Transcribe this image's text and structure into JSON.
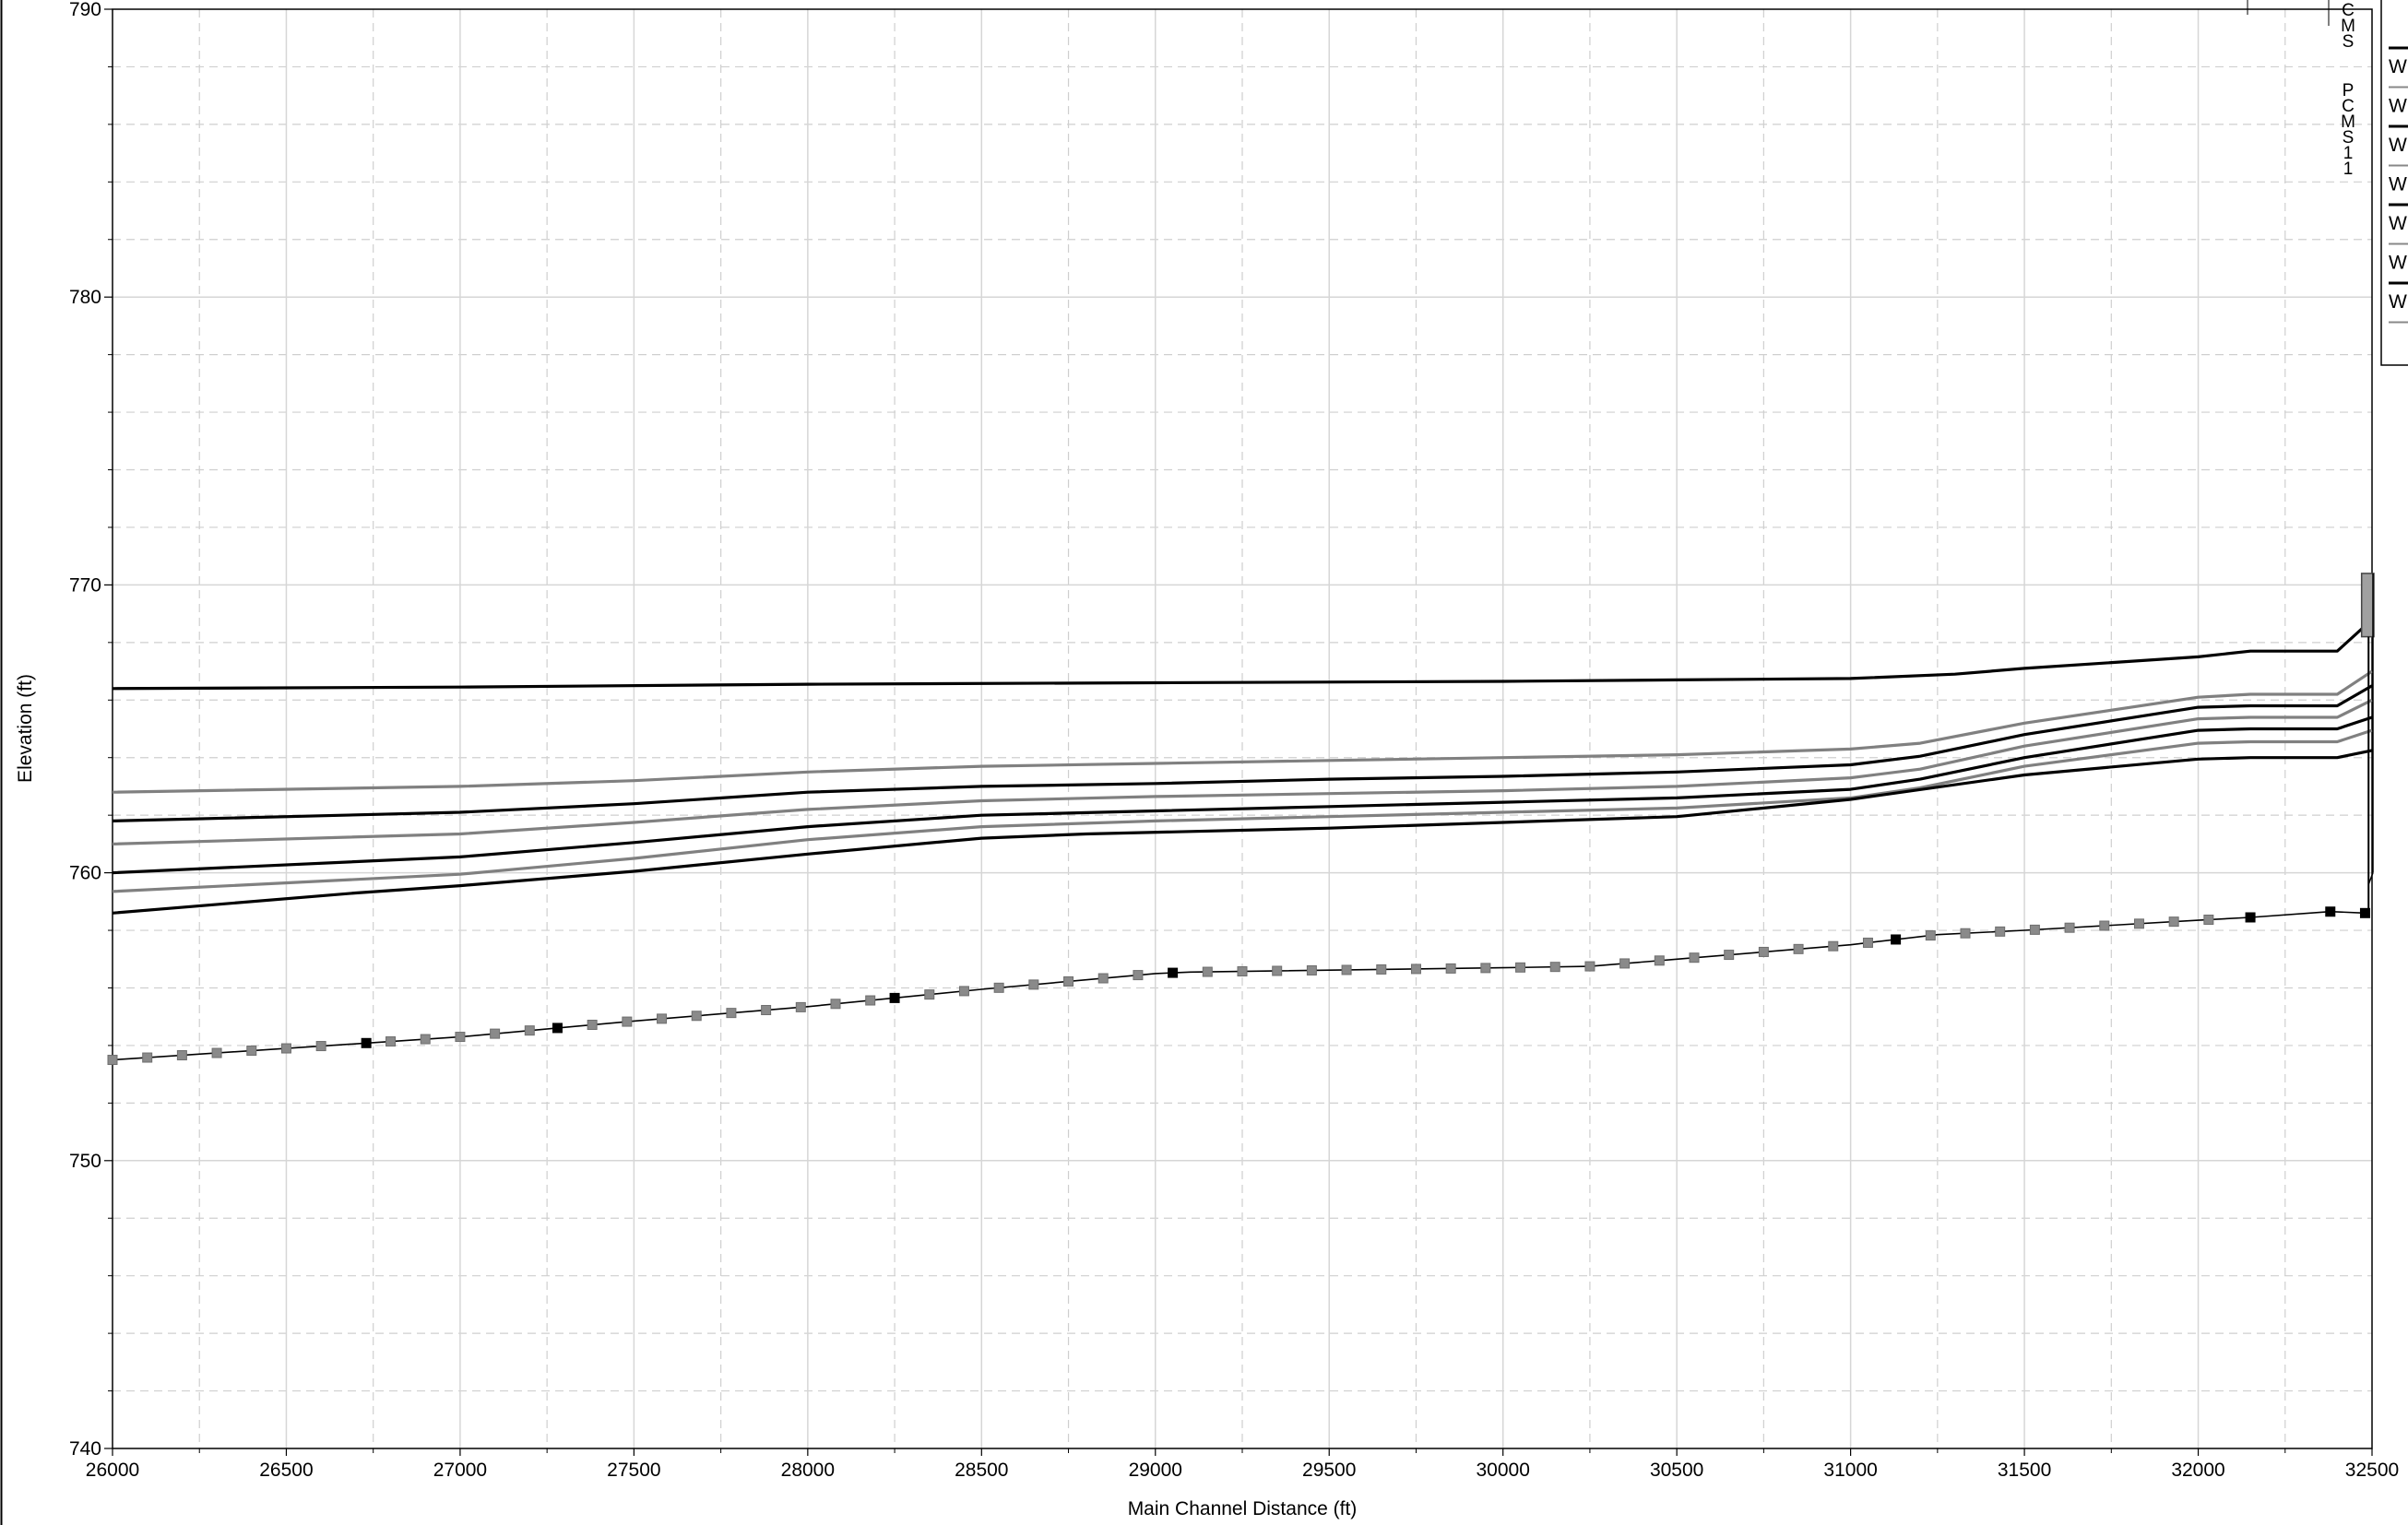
{
  "chart_data": {
    "type": "line",
    "xlabel": "Main Channel Distance (ft)",
    "ylabel": "Elevation (ft)",
    "xlim": [
      26000,
      32500
    ],
    "ylim": [
      740,
      790
    ],
    "x_ticks": [
      26000,
      26500,
      27000,
      27500,
      28000,
      28500,
      29000,
      29500,
      30000,
      30500,
      31000,
      31500,
      32000,
      32500
    ],
    "y_ticks": [
      740,
      750,
      760,
      770,
      780,
      790
    ],
    "grid": true,
    "legend_placement": "top-right",
    "legend_entries": [
      "W",
      "W",
      "W",
      "W",
      "W",
      "W",
      "W",
      ""
    ],
    "structure_labels": [
      [
        "C",
        "M",
        "S"
      ],
      [
        "P",
        "C",
        "M",
        "S",
        "1",
        "1"
      ]
    ],
    "series": [
      {
        "color": "#000000",
        "x": [
          26000,
          27000,
          28000,
          29000,
          30000,
          30500,
          31000,
          31300,
          31500,
          32000,
          32150,
          32400,
          32500
        ],
        "y": [
          766.4,
          766.45,
          766.55,
          766.6,
          766.65,
          766.7,
          766.75,
          766.9,
          767.1,
          767.5,
          767.7,
          767.7,
          768.8
        ]
      },
      {
        "color": "#808080",
        "x": [
          26000,
          27000,
          27500,
          28000,
          28500,
          29000,
          29500,
          30000,
          30500,
          31000,
          31200,
          31500,
          32000,
          32150,
          32400,
          32500
        ],
        "y": [
          762.8,
          763.0,
          763.2,
          763.5,
          763.7,
          763.8,
          763.9,
          764.0,
          764.1,
          764.3,
          764.5,
          765.2,
          766.1,
          766.2,
          766.2,
          767.0
        ]
      },
      {
        "color": "#000000",
        "x": [
          26000,
          27000,
          27500,
          28000,
          28500,
          29000,
          29500,
          30000,
          30500,
          31000,
          31200,
          31500,
          32000,
          32150,
          32400,
          32500
        ],
        "y": [
          761.8,
          762.1,
          762.4,
          762.8,
          763.0,
          763.1,
          763.25,
          763.35,
          763.5,
          763.75,
          764.05,
          764.8,
          765.75,
          765.8,
          765.8,
          766.5
        ]
      },
      {
        "color": "#808080",
        "x": [
          26000,
          27000,
          27500,
          28000,
          28500,
          29000,
          29500,
          30000,
          30500,
          31000,
          31200,
          31500,
          32000,
          32150,
          32400,
          32500
        ],
        "y": [
          761.0,
          761.35,
          761.75,
          762.2,
          762.5,
          762.65,
          762.75,
          762.85,
          763.0,
          763.3,
          763.6,
          764.4,
          765.35,
          765.4,
          765.4,
          766.0
        ]
      },
      {
        "color": "#000000",
        "x": [
          26000,
          27000,
          27500,
          28000,
          28500,
          29000,
          29500,
          30000,
          30500,
          31000,
          31200,
          31500,
          32000,
          32150,
          32400,
          32500
        ],
        "y": [
          760.0,
          760.55,
          761.05,
          761.6,
          762.0,
          762.15,
          762.3,
          762.45,
          762.6,
          762.9,
          763.25,
          764.0,
          764.95,
          765.0,
          765.0,
          765.4
        ]
      },
      {
        "color": "#808080",
        "x": [
          26000,
          27000,
          27500,
          28000,
          28500,
          29000,
          29500,
          30000,
          30500,
          31000,
          31200,
          31500,
          32000,
          32150,
          32400,
          32500
        ],
        "y": [
          759.35,
          759.95,
          760.5,
          761.15,
          761.6,
          761.8,
          761.95,
          762.1,
          762.25,
          762.6,
          762.95,
          763.7,
          764.5,
          764.55,
          764.55,
          764.95
        ]
      },
      {
        "color": "#000000",
        "x": [
          26000,
          26700,
          27000,
          27500,
          28000,
          28500,
          28800,
          29500,
          30000,
          30500,
          31000,
          31500,
          32000,
          32150,
          32400,
          32500
        ],
        "y": [
          758.6,
          759.3,
          759.55,
          760.05,
          760.65,
          761.2,
          761.35,
          761.55,
          761.75,
          761.95,
          762.55,
          763.4,
          763.95,
          764.0,
          764.0,
          764.25
        ]
      }
    ],
    "ground": {
      "color": "#000000",
      "x": [
        26000,
        27000,
        27500,
        28000,
        28500,
        29000,
        29100,
        30000,
        30250,
        30500,
        31000,
        31250,
        31500,
        32000,
        32150,
        32380,
        32480
      ],
      "y": [
        753.5,
        754.3,
        754.85,
        755.35,
        755.95,
        756.5,
        756.55,
        756.7,
        756.75,
        757.0,
        757.5,
        757.85,
        758.0,
        758.35,
        758.45,
        758.65,
        758.6
      ],
      "marker_x": [
        26000,
        26100,
        26200,
        26300,
        26400,
        26500,
        26600,
        26730,
        26800,
        26900,
        27000,
        27100,
        27200,
        27280,
        27380,
        27480,
        27580,
        27680,
        27780,
        27880,
        27980,
        28080,
        28180,
        28250,
        28350,
        28450,
        28550,
        28650,
        28750,
        28850,
        28950,
        29050,
        29150,
        29250,
        29350,
        29450,
        29550,
        29650,
        29750,
        29850,
        29950,
        30050,
        30150,
        30250,
        30350,
        30450,
        30550,
        30650,
        30750,
        30850,
        30950,
        31050,
        31130,
        31230,
        31330,
        31430,
        31530,
        31630,
        31730,
        31830,
        31930,
        32030,
        32150,
        32380,
        32480
      ],
      "marker_black_x": [
        26730,
        27280,
        28250,
        29050,
        31130,
        32150,
        32380,
        32480
      ]
    },
    "bridge_box": {
      "x": [
        32470,
        32500
      ],
      "y": [
        768.2,
        770.4
      ]
    }
  }
}
